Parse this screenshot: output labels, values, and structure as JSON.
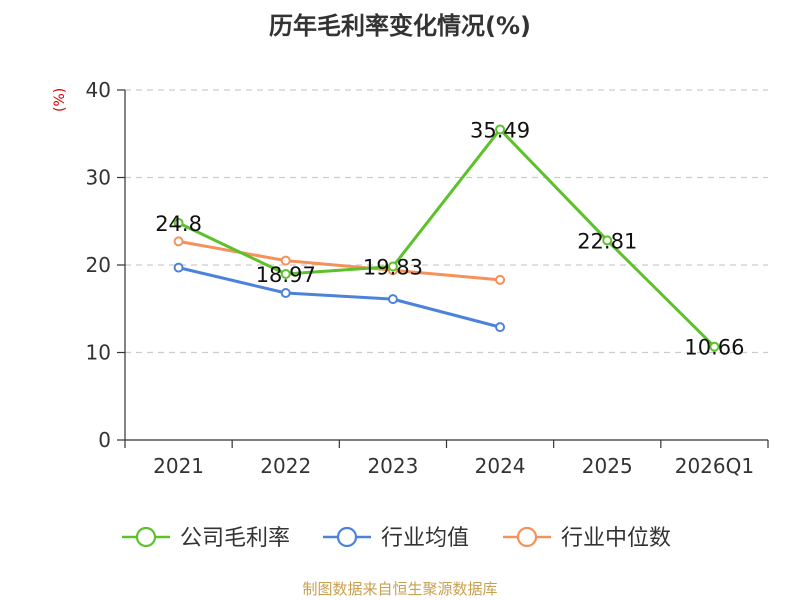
{
  "title": "历年毛利率变化情况(%)",
  "unit_label": "(%)",
  "source": "制图数据来自恒生聚源数据库",
  "colors": {
    "unit": "#d40000",
    "source": "#c8a050",
    "grid": "#cccccc",
    "axis": "#333333"
  },
  "chart_data": {
    "type": "line",
    "title": "历年毛利率变化情况(%)",
    "ylabel": "(%)",
    "categories": [
      "2021",
      "2022",
      "2023",
      "2024",
      "2025",
      "2026Q1"
    ],
    "ylim": [
      0,
      40
    ],
    "yticks": [
      0,
      10,
      20,
      30,
      40
    ],
    "grid": true,
    "legend_position": "bottom",
    "series": [
      {
        "name": "公司毛利率",
        "color": "#5dc12b",
        "values": [
          24.8,
          18.97,
          19.83,
          35.49,
          22.81,
          10.66
        ],
        "labels": [
          "24.8",
          "18.97",
          "19.83",
          "35.49",
          "22.81",
          "10.66"
        ]
      },
      {
        "name": "行业均值",
        "color": "#4d82dc",
        "values": [
          19.7,
          16.8,
          16.1,
          12.9,
          null,
          null
        ]
      },
      {
        "name": "行业中位数",
        "color": "#f5915a",
        "values": [
          22.7,
          20.5,
          19.4,
          18.3,
          null,
          null
        ]
      }
    ]
  }
}
